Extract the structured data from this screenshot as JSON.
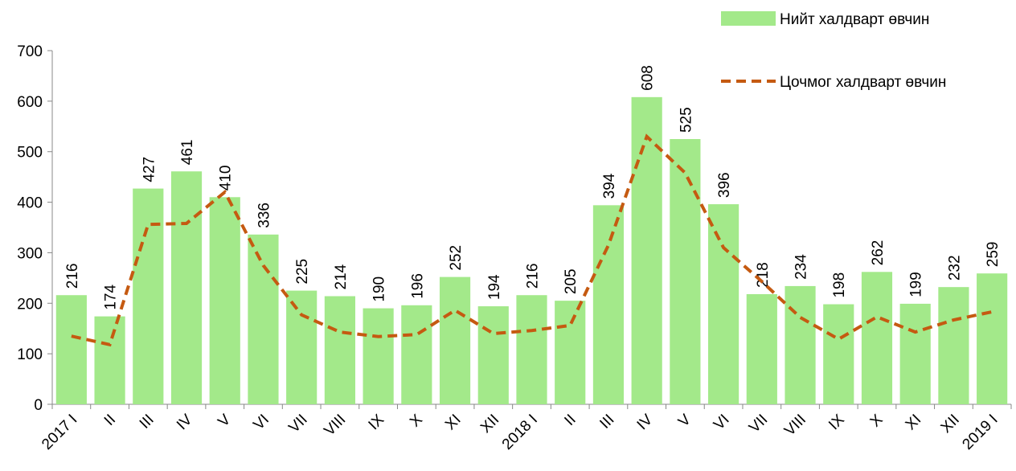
{
  "chart_data": {
    "type": "bar-line",
    "categories": [
      "2017 I",
      "II",
      "III",
      "IV",
      "V",
      "VI",
      "VII",
      "VIII",
      "IX",
      "X",
      "XI",
      "XII",
      "2018 I",
      "II",
      "III",
      "IV",
      "V",
      "VI",
      "VII",
      "VIII",
      "IX",
      "X",
      "XI",
      "XII",
      "2019 I"
    ],
    "series": [
      {
        "name": "Нийт халдварт өвчин",
        "type": "bar",
        "color": "#a3e98a",
        "values": [
          216,
          174,
          427,
          461,
          410,
          336,
          225,
          214,
          190,
          196,
          252,
          194,
          216,
          205,
          394,
          608,
          525,
          396,
          218,
          234,
          198,
          262,
          199,
          232,
          259
        ]
      },
      {
        "name": "Цочмог халдварт өвчин",
        "type": "line",
        "color": "#c55a11",
        "values": [
          135,
          118,
          356,
          358,
          420,
          275,
          177,
          143,
          134,
          138,
          186,
          140,
          146,
          156,
          315,
          530,
          458,
          310,
          243,
          172,
          129,
          173,
          143,
          167,
          183
        ]
      }
    ],
    "ylim": [
      0,
      700
    ],
    "yticks": [
      0,
      100,
      200,
      300,
      400,
      500,
      600,
      700
    ],
    "legend": "top-right"
  }
}
